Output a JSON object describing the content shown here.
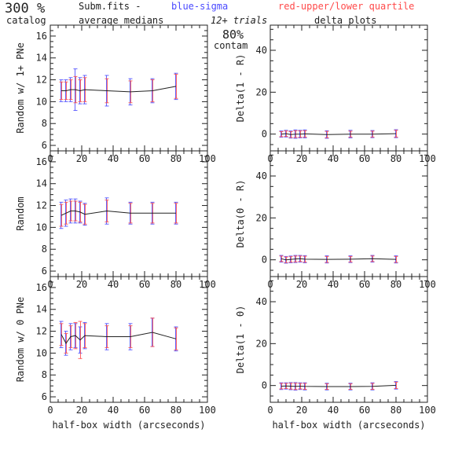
{
  "header": {
    "percent": "300 %",
    "catalog": "catalog",
    "file": "Subm.fits  -",
    "blue_label": "blue-sigma",
    "red_label": "red-upper/lower quartile",
    "medians": "average medians",
    "trials": "12+ trials",
    "contam_pct": "80%",
    "contam": "contam",
    "delta_title": "delta plots"
  },
  "colors": {
    "blue": "#4a4aff",
    "red": "#ff4a4a",
    "line": "#222222"
  },
  "chart_data": [
    {
      "type": "line",
      "ylabel": "Random w/ 1+ PNe",
      "xlabel": "",
      "xlim": [
        0,
        100
      ],
      "ylim": [
        5.5,
        17
      ],
      "xticks": [
        0,
        20,
        40,
        60,
        80,
        100
      ],
      "yticks": [
        6,
        8,
        10,
        12,
        14,
        16
      ],
      "x": [
        7,
        10,
        13,
        16,
        19,
        22,
        36,
        51,
        65,
        80
      ],
      "y": [
        11.0,
        11.0,
        11.1,
        11.1,
        11.0,
        11.1,
        11.0,
        10.9,
        11.0,
        11.4
      ],
      "sigma": [
        1.0,
        1.0,
        1.1,
        1.9,
        1.2,
        1.3,
        1.4,
        1.2,
        1.1,
        1.2
      ],
      "quartile": [
        0.8,
        0.8,
        0.9,
        1.2,
        1.0,
        1.1,
        1.1,
        1.0,
        1.0,
        1.1
      ]
    },
    {
      "type": "line",
      "ylabel": "Delta(1 - R)",
      "xlabel": "",
      "xlim": [
        0,
        100
      ],
      "ylim": [
        -8,
        52
      ],
      "xticks": [
        0,
        20,
        40,
        60,
        80,
        100
      ],
      "yticks": [
        0,
        20,
        40
      ],
      "x": [
        7,
        10,
        13,
        16,
        19,
        22,
        36,
        51,
        65,
        80
      ],
      "y": [
        0.0,
        0.2,
        -0.2,
        0.0,
        0.0,
        0.1,
        -0.2,
        0.0,
        0.0,
        0.2
      ],
      "sigma": [
        1.5,
        1.6,
        1.7,
        2.0,
        1.8,
        1.9,
        1.8,
        1.8,
        1.7,
        1.9
      ],
      "quartile": [
        1.2,
        1.3,
        1.4,
        1.6,
        1.5,
        1.5,
        1.5,
        1.4,
        1.4,
        1.6
      ]
    },
    {
      "type": "line",
      "ylabel": "Random",
      "xlabel": "",
      "xlim": [
        0,
        100
      ],
      "ylim": [
        5.5,
        17
      ],
      "xticks": [
        0,
        20,
        40,
        60,
        80,
        100
      ],
      "yticks": [
        6,
        8,
        10,
        12,
        14,
        16
      ],
      "x": [
        7,
        10,
        13,
        16,
        19,
        22,
        36,
        51,
        65,
        80
      ],
      "y": [
        11.1,
        11.3,
        11.5,
        11.5,
        11.4,
        11.2,
        11.5,
        11.3,
        11.3,
        11.3
      ],
      "sigma": [
        1.2,
        1.2,
        1.1,
        1.1,
        1.0,
        1.0,
        1.2,
        1.0,
        1.0,
        1.0
      ],
      "quartile": [
        1.0,
        1.0,
        0.9,
        0.9,
        0.9,
        0.9,
        1.0,
        0.9,
        0.9,
        0.9
      ]
    },
    {
      "type": "line",
      "ylabel": "Delta(0 - R)",
      "xlabel": "",
      "xlim": [
        0,
        100
      ],
      "ylim": [
        -8,
        52
      ],
      "xticks": [
        0,
        20,
        40,
        60,
        80,
        100
      ],
      "yticks": [
        0,
        20,
        40
      ],
      "x": [
        7,
        10,
        13,
        16,
        19,
        22,
        36,
        51,
        65,
        80
      ],
      "y": [
        0.5,
        0.0,
        0.2,
        0.4,
        0.5,
        0.3,
        0.2,
        0.3,
        0.5,
        0.2
      ],
      "sigma": [
        1.6,
        1.6,
        1.6,
        1.7,
        1.6,
        1.7,
        1.7,
        1.6,
        1.6,
        1.7
      ],
      "quartile": [
        1.3,
        1.3,
        1.3,
        1.4,
        1.3,
        1.4,
        1.4,
        1.3,
        1.3,
        1.4
      ]
    },
    {
      "type": "line",
      "ylabel": "Random w/ 0 PNe",
      "xlabel": "half-box width (arcseconds)",
      "xlim": [
        0,
        100
      ],
      "ylim": [
        5.5,
        17
      ],
      "xticks": [
        0,
        20,
        40,
        60,
        80,
        100
      ],
      "yticks": [
        6,
        8,
        10,
        12,
        14,
        16
      ],
      "x": [
        7,
        10,
        13,
        16,
        19,
        22,
        36,
        51,
        65,
        80
      ],
      "y": [
        11.7,
        10.9,
        11.5,
        11.6,
        11.2,
        11.6,
        11.5,
        11.5,
        11.9,
        11.3
      ],
      "sigma": [
        1.2,
        1.1,
        1.2,
        1.1,
        1.2,
        1.2,
        1.2,
        1.2,
        1.3,
        1.1
      ],
      "quartile": [
        1.0,
        0.9,
        1.0,
        1.2,
        1.7,
        1.1,
        1.0,
        1.0,
        1.3,
        1.0
      ]
    },
    {
      "type": "line",
      "ylabel": "Delta(1 - 0)",
      "xlabel": "half-box width (arcseconds)",
      "xlim": [
        0,
        100
      ],
      "ylim": [
        -8,
        52
      ],
      "xticks": [
        0,
        20,
        40,
        60,
        80,
        100
      ],
      "yticks": [
        0,
        20,
        40
      ],
      "x": [
        7,
        10,
        13,
        16,
        19,
        22,
        36,
        51,
        65,
        80
      ],
      "y": [
        -0.3,
        -0.2,
        -0.3,
        -0.4,
        -0.3,
        -0.4,
        -0.5,
        -0.5,
        -0.4,
        0.1
      ],
      "sigma": [
        1.6,
        1.5,
        1.7,
        1.8,
        1.6,
        1.7,
        1.6,
        1.6,
        1.7,
        1.8
      ],
      "quartile": [
        1.3,
        1.2,
        1.4,
        1.5,
        1.3,
        1.4,
        1.3,
        1.3,
        1.4,
        1.5
      ]
    }
  ]
}
